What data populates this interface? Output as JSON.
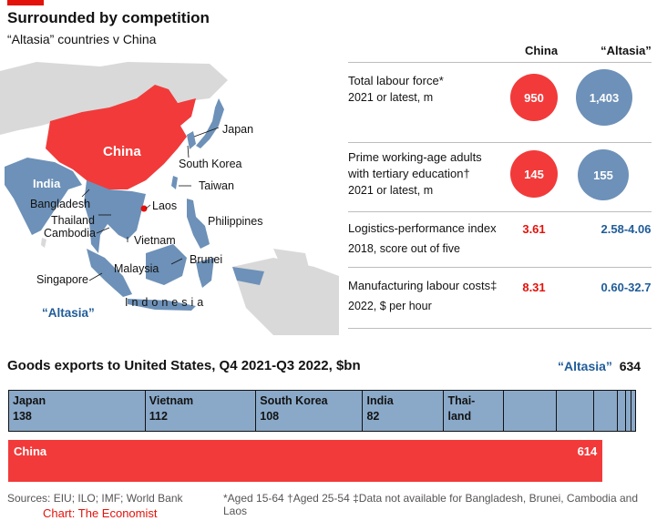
{
  "header": {
    "title": "Surrounded by competition",
    "subtitle": "“Altasia” countries v China"
  },
  "map": {
    "labels": {
      "china": "China",
      "japan": "Japan",
      "south_korea": "South Korea",
      "taiwan": "Taiwan",
      "india": "India",
      "bangladesh": "Bangladesh",
      "laos": "Laos",
      "thailand": "Thailand",
      "cambodia": "Cambodia",
      "vietnam": "Vietnam",
      "philippines": "Philippines",
      "brunei": "Brunei",
      "malaysia": "Malaysia",
      "singapore": "Singapore",
      "indonesia": "Indonesia",
      "altasia": "“Altasia”"
    },
    "colors": {
      "china": "#f23a3a",
      "altasia": "#6d91b8",
      "other": "#d9d9d9"
    }
  },
  "table": {
    "col_china": "China",
    "col_altasia": "“Altasia”",
    "rows": [
      {
        "label_lines": [
          "Total labour force*"
        ],
        "sub": "2021 or latest, m",
        "china": "950",
        "altasia": "1,403"
      },
      {
        "label_lines": [
          "Prime working-age adults",
          "with tertiary education†"
        ],
        "sub": "2021 or latest, m",
        "china": "145",
        "altasia": "155"
      },
      {
        "label_lines": [
          "Logistics-performance index"
        ],
        "sub": "2018, score out of five",
        "china": "3.61",
        "altasia": "2.58-4.06"
      },
      {
        "label_lines": [
          "Manufacturing labour costs‡"
        ],
        "sub": "2022, $ per hour",
        "china": "8.31",
        "altasia": "0.60-32.7"
      }
    ]
  },
  "chart_data": {
    "type": "bar",
    "title": "Goods exports to United States, Q4 2021-Q3 2022, $bn",
    "stacked_series_name": "“Altasia”",
    "stacked_total": 634,
    "stacked_total_label": "634",
    "altasia_segments": [
      {
        "name": "Japan",
        "value": 138
      },
      {
        "name": "Vietnam",
        "value": 112
      },
      {
        "name": "South Korea",
        "value": 108
      },
      {
        "name": "India",
        "value": 82
      },
      {
        "name": "Thai-land",
        "value": 60
      },
      {
        "name": "",
        "value": 54
      },
      {
        "name": "",
        "value": 38
      },
      {
        "name": "",
        "value": 24
      },
      {
        "name": "",
        "value": 8
      },
      {
        "name": "",
        "value": 5
      },
      {
        "name": "",
        "value": 5
      }
    ],
    "china": {
      "name": "China",
      "value": 614,
      "label": "614"
    },
    "xlim": [
      0,
      634
    ]
  },
  "footer": {
    "sources": "Sources: EIU; ILO; IMF; World Bank",
    "notes": "*Aged 15-64   †Aged 25-54   ‡Data not available for Bangladesh, Brunei, Cambodia and Laos",
    "credit": "Chart: The Economist"
  }
}
